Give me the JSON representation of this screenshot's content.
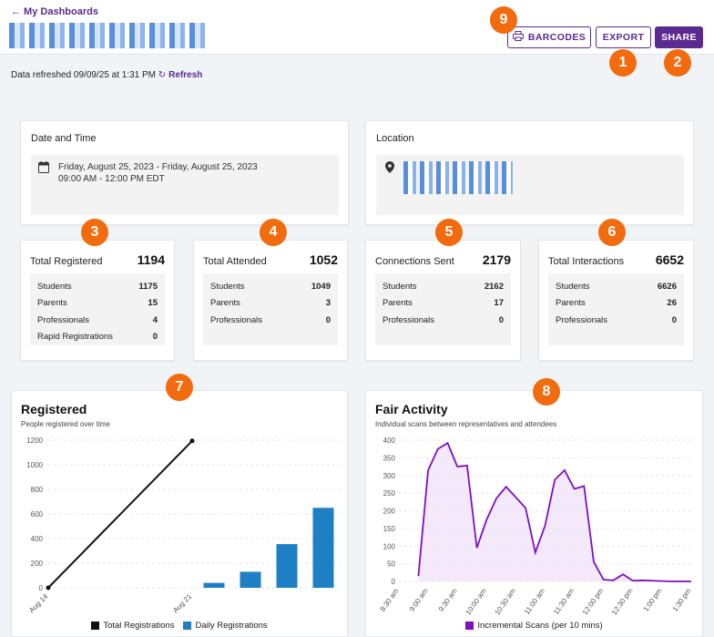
{
  "header": {
    "back_label": "← My Dashboards",
    "barcodes_label": "BARCODES",
    "export_label": "EXPORT",
    "share_label": "SHARE"
  },
  "refresh": {
    "text": "Data refreshed 09/09/25 at 1:31 PM",
    "link": "Refresh"
  },
  "badges": [
    "9",
    "1",
    "2",
    "3",
    "4",
    "5",
    "6",
    "7",
    "8"
  ],
  "date_card": {
    "title": "Date and Time",
    "line1": "Friday, August 25, 2023 - Friday, August 25, 2023",
    "line2": "09:00 AM - 12:00 PM EDT"
  },
  "location_card": {
    "title": "Location"
  },
  "stats": [
    {
      "label": "Total Registered",
      "total": "1194",
      "rows": [
        {
          "label": "Students",
          "value": "1175"
        },
        {
          "label": "Parents",
          "value": "15"
        },
        {
          "label": "Professionals",
          "value": "4"
        },
        {
          "label": "Rapid Registrations",
          "value": "0"
        }
      ]
    },
    {
      "label": "Total Attended",
      "total": "1052",
      "rows": [
        {
          "label": "Students",
          "value": "1049"
        },
        {
          "label": "Parents",
          "value": "3"
        },
        {
          "label": "Professionals",
          "value": "0"
        }
      ]
    },
    {
      "label": "Connections Sent",
      "total": "2179",
      "rows": [
        {
          "label": "Students",
          "value": "2162"
        },
        {
          "label": "Parents",
          "value": "17"
        },
        {
          "label": "Professionals",
          "value": "0"
        }
      ]
    },
    {
      "label": "Total Interactions",
      "total": "6652",
      "rows": [
        {
          "label": "Students",
          "value": "6626"
        },
        {
          "label": "Parents",
          "value": "26"
        },
        {
          "label": "Professionals",
          "value": "0"
        }
      ]
    }
  ],
  "colors": {
    "accent": "#5b2a91",
    "badge": "#f26b0f",
    "bar": "#1f7fc4",
    "line_purple": "#7b10c7"
  },
  "chart_data": [
    {
      "type": "bar",
      "title": "Registered",
      "subtitle": "People registered over time",
      "ylim": [
        0,
        1200
      ],
      "yticks": [
        0,
        200,
        400,
        600,
        800,
        1000,
        1200
      ],
      "xticks": [
        "Aug 14",
        "Aug 21"
      ],
      "grid": true,
      "legend_position": "bottom",
      "series": [
        {
          "name": "Total Registrations",
          "kind": "line",
          "color": "#111111",
          "points": [
            {
              "x": "Aug 14",
              "y": 0
            },
            {
              "x": "Aug 21",
              "y": 1194
            }
          ]
        },
        {
          "name": "Daily Registrations",
          "kind": "bar",
          "color": "#1f7fc4",
          "bars": [
            {
              "x": 4,
              "y": 40
            },
            {
              "x": 5,
              "y": 130
            },
            {
              "x": 6,
              "y": 355
            },
            {
              "x": 7,
              "y": 650
            }
          ]
        }
      ]
    },
    {
      "type": "area",
      "title": "Fair Activity",
      "subtitle": "Individual scans between representatives and attendees",
      "ylim": [
        0,
        400
      ],
      "yticks": [
        0,
        50,
        100,
        150,
        200,
        250,
        300,
        350,
        400
      ],
      "xticks": [
        "8:30 am",
        "9:00 am",
        "9:30 am",
        "10:00 am",
        "10:30 am",
        "11:00 am",
        "11:30 am",
        "12:00 pm",
        "12:30 pm",
        "1:00 pm",
        "1:30 pm"
      ],
      "grid": true,
      "legend_position": "bottom",
      "series": [
        {
          "name": "Incremental Scans (per 10 mins)",
          "color": "#7b10c7",
          "x": [
            "8:50",
            "9:00",
            "9:10",
            "9:20",
            "9:30",
            "9:40",
            "9:50",
            "10:00",
            "10:10",
            "10:20",
            "10:30",
            "10:40",
            "10:50",
            "11:00",
            "11:10",
            "11:20",
            "11:30",
            "11:40",
            "11:50",
            "12:00",
            "12:10",
            "12:20",
            "12:30",
            "12:40",
            "12:50",
            "1:00",
            "1:10",
            "1:20",
            "1:30"
          ],
          "values": [
            15,
            315,
            375,
            392,
            325,
            328,
            95,
            175,
            235,
            268,
            238,
            208,
            82,
            158,
            288,
            315,
            262,
            270,
            55,
            5,
            3,
            20,
            2,
            3,
            2,
            1,
            0,
            0,
            0
          ]
        }
      ]
    }
  ]
}
